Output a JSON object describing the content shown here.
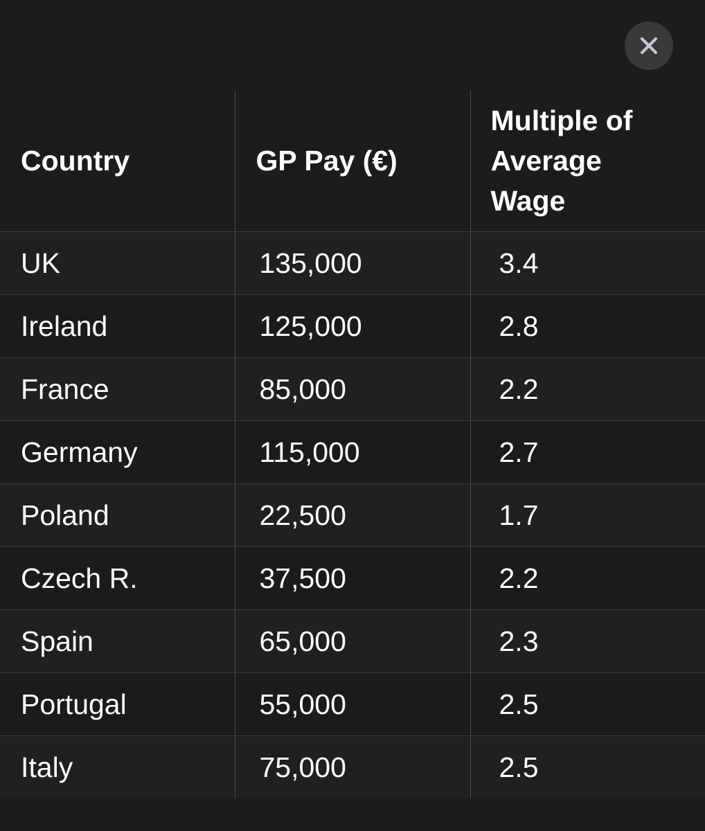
{
  "dialog": {
    "close_icon": "close-icon"
  },
  "table": {
    "headers": [
      "Country",
      "GP Pay (€)",
      "Multiple of Average Wage"
    ],
    "rows": [
      [
        "UK",
        "135,000",
        "3.4"
      ],
      [
        "Ireland",
        "125,000",
        "2.8"
      ],
      [
        "France",
        "85,000",
        "2.2"
      ],
      [
        "Germany",
        "115,000",
        "2.7"
      ],
      [
        "Poland",
        "22,500",
        "1.7"
      ],
      [
        "Czech R.",
        "37,500",
        "2.2"
      ],
      [
        "Spain",
        "65,000",
        "2.3"
      ],
      [
        "Portugal",
        "55,000",
        "2.5"
      ],
      [
        "Italy",
        "75,000",
        "2.5"
      ]
    ]
  },
  "colors": {
    "background": "#1c1c1e",
    "close_button": "#3a3a3c",
    "text": "#ffffff",
    "divider": "#4a4a4d"
  }
}
